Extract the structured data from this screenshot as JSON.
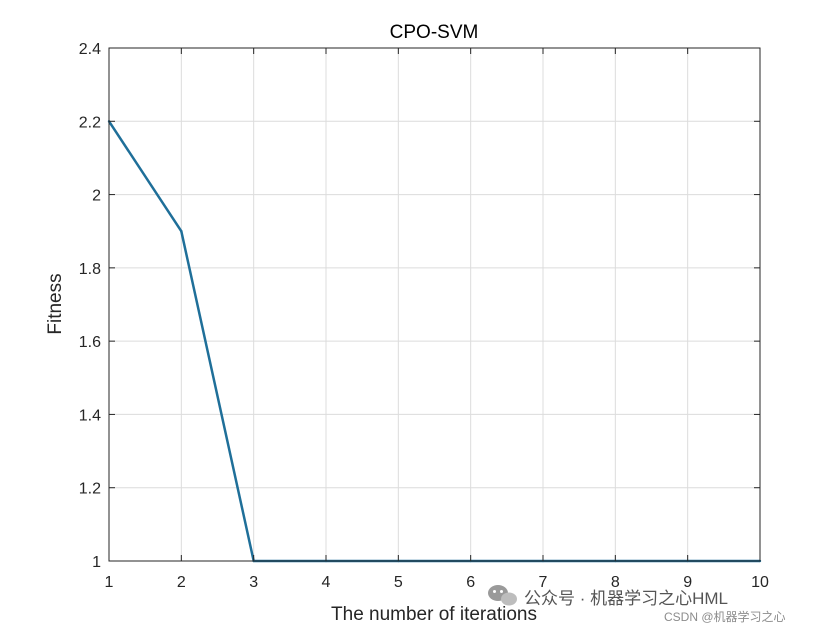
{
  "chart_data": {
    "type": "line",
    "title": "CPO-SVM",
    "xlabel": "The number of iterations",
    "ylabel": "Fitness",
    "xlim": [
      1,
      10
    ],
    "ylim": [
      1,
      2.4
    ],
    "xticks": [
      "1",
      "2",
      "3",
      "4",
      "5",
      "6",
      "7",
      "8",
      "9",
      "10"
    ],
    "yticks": [
      "1",
      "1.2",
      "1.4",
      "1.6",
      "1.8",
      "2",
      "2.2",
      "2.4"
    ],
    "grid": true,
    "series": [
      {
        "color": "#1f6f99",
        "x": [
          1,
          2,
          3,
          4,
          5,
          6,
          7,
          8,
          9,
          10
        ],
        "y": [
          2.2,
          1.9,
          1.0,
          1.0,
          1.0,
          1.0,
          1.0,
          1.0,
          1.0,
          1.0
        ]
      }
    ]
  },
  "watermark": {
    "line1": "公众号 · 机器学习之心HML",
    "line2": "CSDN @机器学习之心"
  }
}
